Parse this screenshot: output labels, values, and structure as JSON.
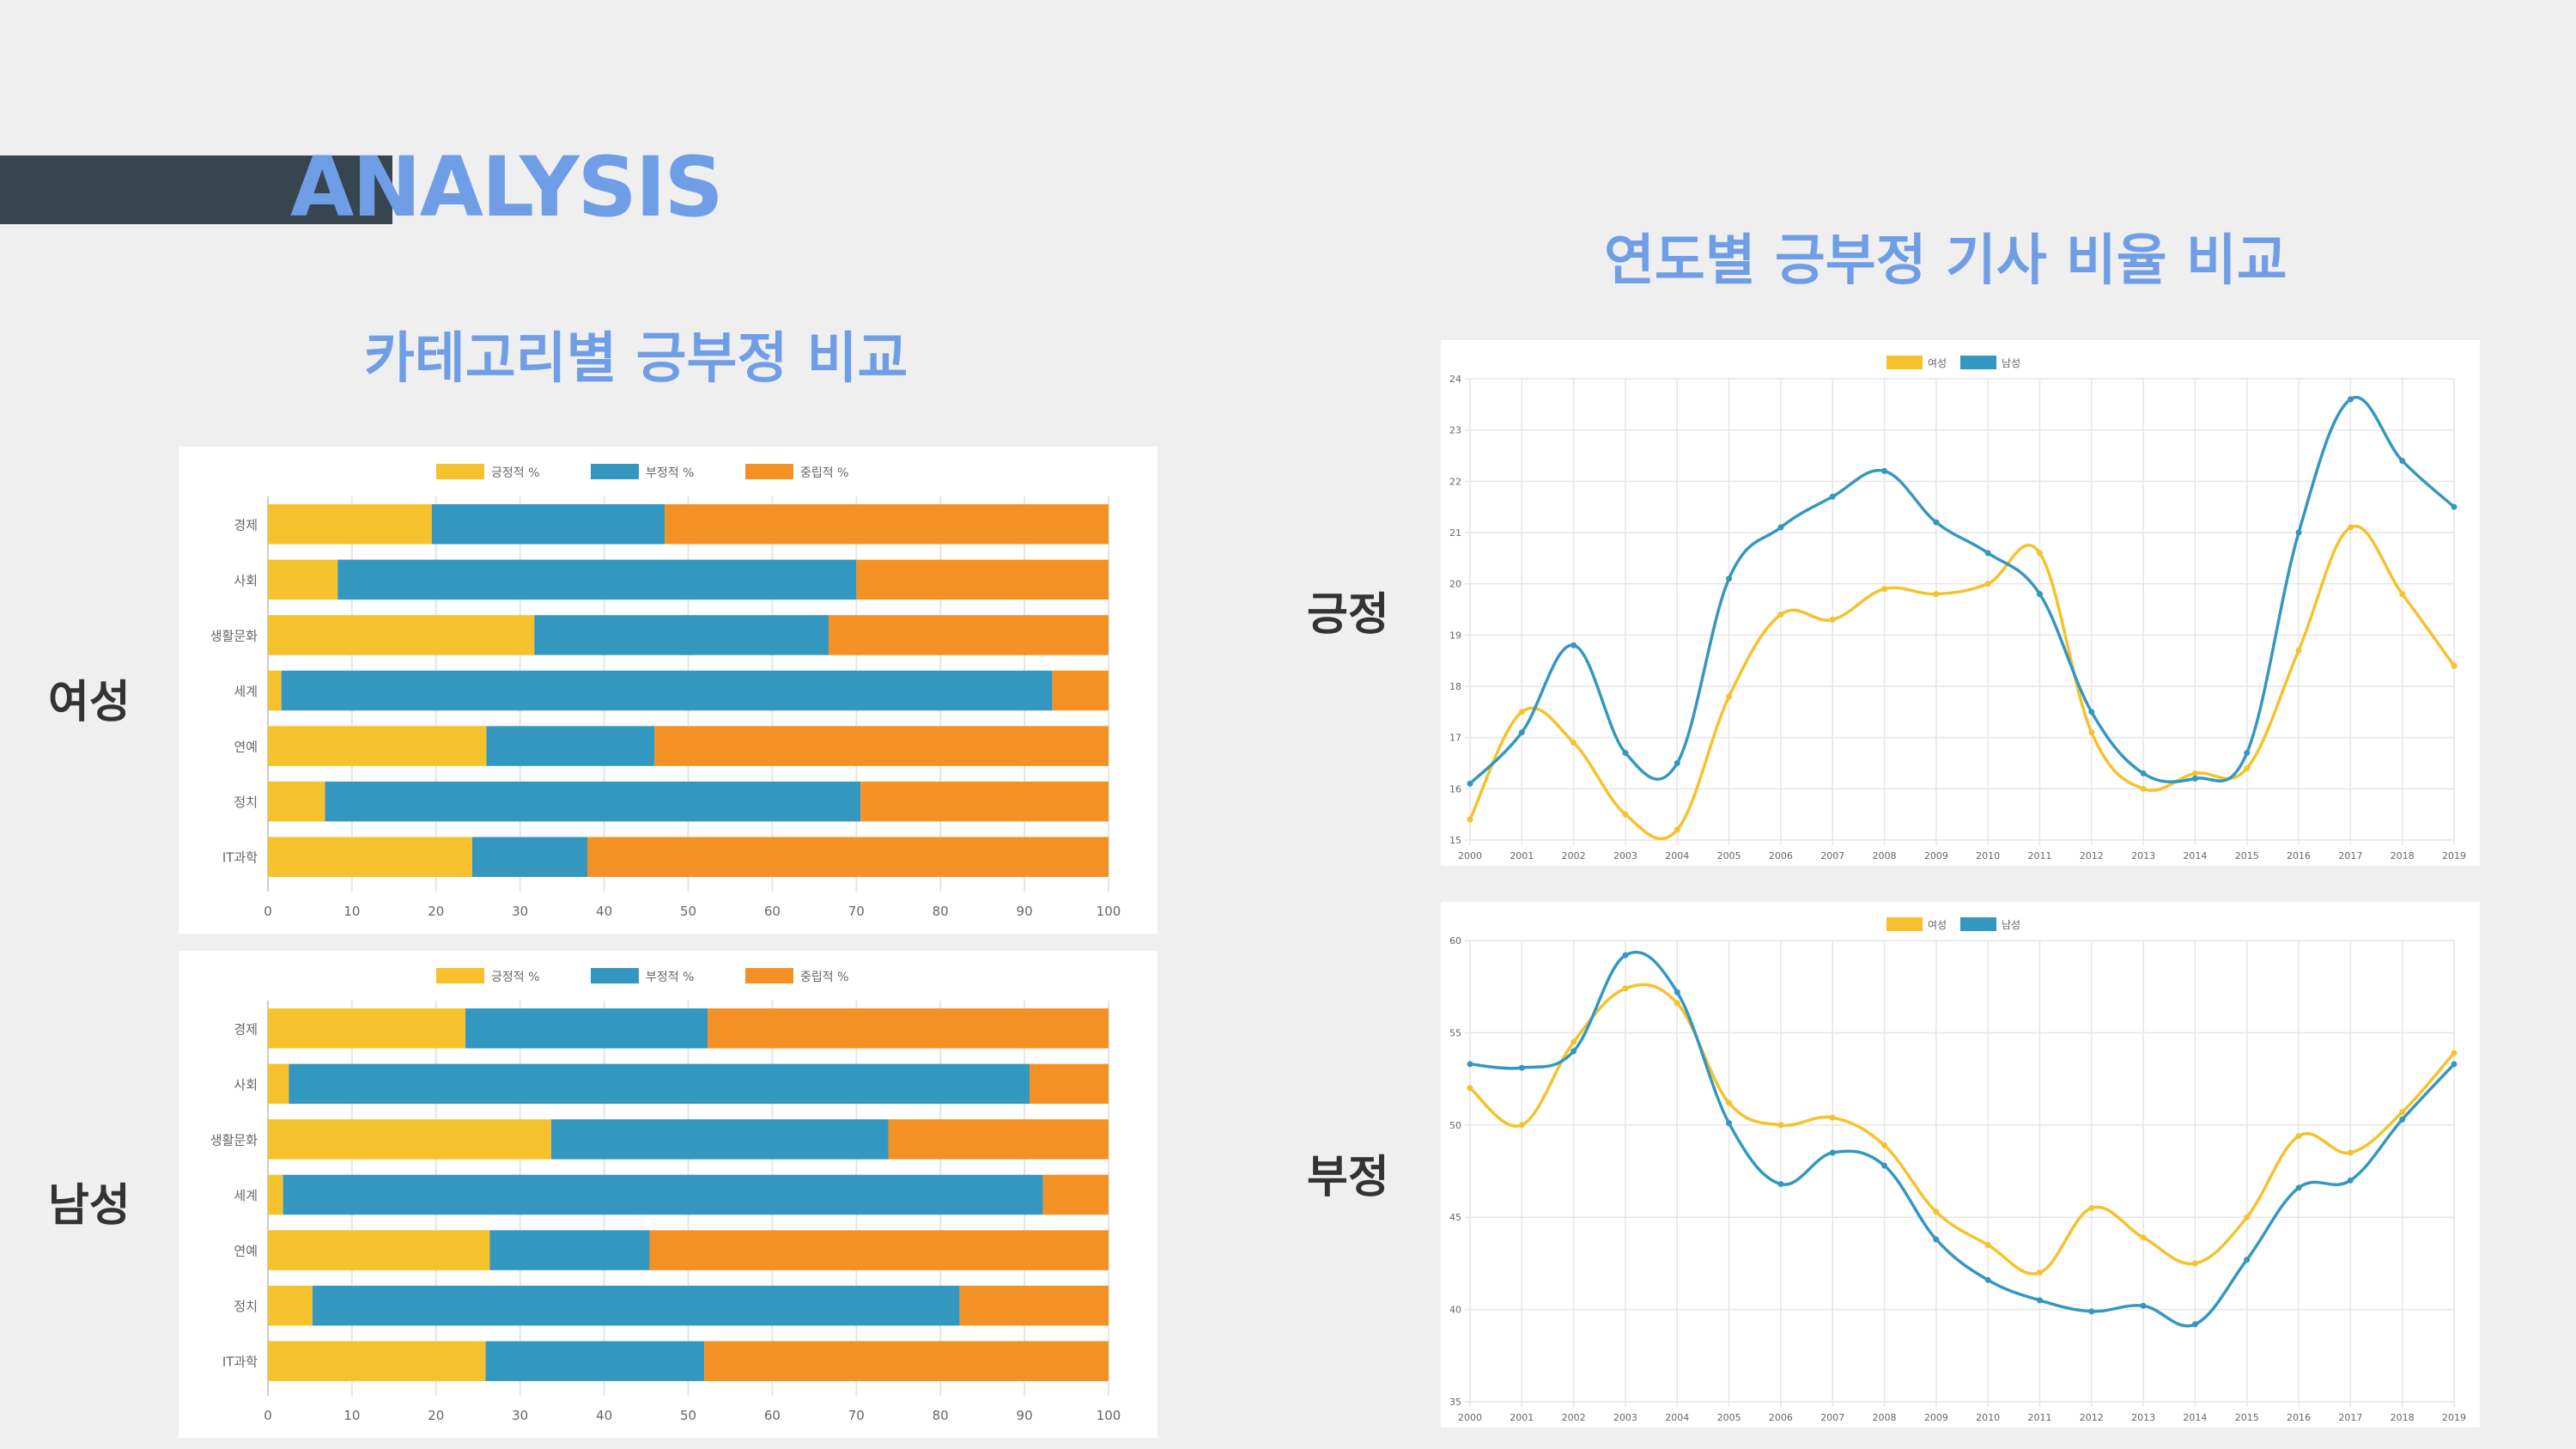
{
  "header": {
    "title": "ANALYSIS"
  },
  "left_section": {
    "title": "카테고리별 긍부정 비교"
  },
  "right_section": {
    "title": "연도별 긍부정 기사 비율 비교"
  },
  "labels": {
    "female": "여성",
    "male": "남성",
    "positive": "긍정",
    "negative": "부정"
  },
  "colors": {
    "yellow": "#f5c22d",
    "blue": "#3497bf",
    "orange": "#f39125"
  },
  "chart_data": [
    {
      "type": "bar",
      "orientation": "horizontal",
      "stacked": true,
      "panel": "여성",
      "categories": [
        "경제",
        "사회",
        "생활문화",
        "세계",
        "연예",
        "정치",
        "IT과학"
      ],
      "series": [
        {
          "name": "긍정적 %",
          "color": "#f5c22d",
          "values": [
            19.5,
            8.3,
            31.7,
            1.6,
            26.0,
            6.8,
            24.3
          ]
        },
        {
          "name": "부정적 %",
          "color": "#3497bf",
          "values": [
            27.7,
            61.7,
            35.0,
            91.7,
            20.0,
            63.7,
            13.7
          ]
        },
        {
          "name": "중립적 %",
          "color": "#f39125",
          "values": [
            52.8,
            30.0,
            33.3,
            6.7,
            54.0,
            29.5,
            62.0
          ]
        }
      ],
      "xlim": [
        0,
        100
      ],
      "xticks": [
        0,
        10,
        20,
        30,
        40,
        50,
        60,
        70,
        80,
        90,
        100
      ],
      "legend": "top"
    },
    {
      "type": "bar",
      "orientation": "horizontal",
      "stacked": true,
      "panel": "남성",
      "categories": [
        "경제",
        "사회",
        "생활문화",
        "세계",
        "연예",
        "정치",
        "IT과학"
      ],
      "series": [
        {
          "name": "긍정적 %",
          "color": "#f5c22d",
          "values": [
            23.5,
            2.5,
            33.7,
            1.8,
            26.4,
            5.3,
            25.9
          ]
        },
        {
          "name": "부정적 %",
          "color": "#3497bf",
          "values": [
            28.8,
            88.1,
            40.1,
            90.4,
            19.0,
            77.0,
            26.0
          ]
        },
        {
          "name": "중립적 %",
          "color": "#f39125",
          "values": [
            47.7,
            9.4,
            26.2,
            7.8,
            54.6,
            17.7,
            48.1
          ]
        }
      ],
      "xlim": [
        0,
        100
      ],
      "xticks": [
        0,
        10,
        20,
        30,
        40,
        50,
        60,
        70,
        80,
        90,
        100
      ],
      "legend": "top"
    },
    {
      "type": "line",
      "panel": "긍정",
      "x": [
        "2000",
        "2001",
        "2002",
        "2003",
        "2004",
        "2005",
        "2006",
        "2007",
        "2008",
        "2009",
        "2010",
        "2011",
        "2012",
        "2013",
        "2014",
        "2015",
        "2016",
        "2017",
        "2018",
        "2019"
      ],
      "series": [
        {
          "name": "여성",
          "color": "#f5c22d",
          "values": [
            15.4,
            17.5,
            16.9,
            15.5,
            15.2,
            17.8,
            19.4,
            19.3,
            19.9,
            19.8,
            20.0,
            20.6,
            17.1,
            16.0,
            16.3,
            16.4,
            18.7,
            21.1,
            19.8,
            18.4
          ]
        },
        {
          "name": "남성",
          "color": "#3497bf",
          "values": [
            16.1,
            17.1,
            18.8,
            16.7,
            16.5,
            20.1,
            21.1,
            21.7,
            22.2,
            21.2,
            20.6,
            19.8,
            17.5,
            16.3,
            16.2,
            16.7,
            21.0,
            23.6,
            22.4,
            21.5
          ]
        }
      ],
      "ylim": [
        15,
        24
      ],
      "yticks": [
        15,
        16,
        17,
        18,
        19,
        20,
        21,
        22,
        23,
        24
      ],
      "legend": "top"
    },
    {
      "type": "line",
      "panel": "부정",
      "x": [
        "2000",
        "2001",
        "2002",
        "2003",
        "2004",
        "2005",
        "2006",
        "2007",
        "2008",
        "2009",
        "2010",
        "2011",
        "2012",
        "2013",
        "2014",
        "2015",
        "2016",
        "2017",
        "2018",
        "2019"
      ],
      "series": [
        {
          "name": "여성",
          "color": "#f5c22d",
          "values": [
            52.0,
            50.0,
            54.5,
            57.4,
            56.6,
            51.2,
            50.0,
            50.4,
            48.9,
            45.3,
            43.5,
            42.0,
            45.5,
            43.9,
            42.5,
            45.0,
            49.4,
            48.5,
            50.7,
            53.9
          ]
        },
        {
          "name": "남성",
          "color": "#3497bf",
          "values": [
            53.3,
            53.1,
            54.0,
            59.2,
            57.2,
            50.1,
            46.8,
            48.5,
            47.8,
            43.8,
            41.6,
            40.5,
            39.9,
            40.2,
            39.2,
            42.7,
            46.6,
            47.0,
            50.3,
            53.3
          ]
        }
      ],
      "ylim": [
        35,
        60
      ],
      "yticks": [
        35,
        40,
        45,
        50,
        55,
        60
      ],
      "legend": "top"
    }
  ]
}
